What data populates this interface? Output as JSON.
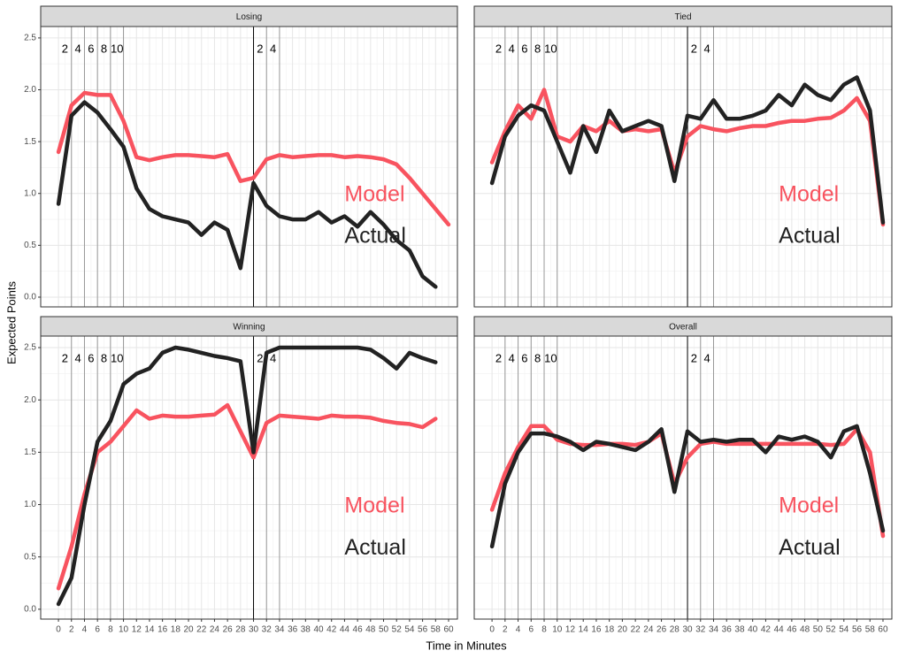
{
  "chart_data": [
    {
      "type": "line",
      "title": "Losing",
      "x": [
        0,
        2,
        4,
        6,
        8,
        10,
        12,
        14,
        16,
        18,
        20,
        22,
        24,
        26,
        28,
        30,
        32,
        34,
        36,
        38,
        40,
        42,
        44,
        46,
        48,
        50,
        52,
        54,
        56,
        58,
        60
      ],
      "series": [
        {
          "name": "Model",
          "color": "#f8535f",
          "values": [
            1.4,
            1.85,
            1.97,
            1.95,
            1.95,
            1.7,
            1.35,
            1.32,
            1.35,
            1.37,
            1.37,
            1.36,
            1.35,
            1.38,
            1.12,
            1.15,
            1.33,
            1.37,
            1.35,
            1.36,
            1.37,
            1.37,
            1.35,
            1.36,
            1.35,
            1.33,
            1.28,
            1.15,
            1.0,
            0.85,
            0.7
          ]
        },
        {
          "name": "Actual",
          "color": "#222222",
          "values": [
            0.9,
            1.75,
            1.88,
            1.78,
            1.62,
            1.45,
            1.05,
            0.85,
            0.78,
            0.75,
            0.72,
            0.6,
            0.72,
            0.65,
            0.28,
            1.1,
            0.88,
            0.78,
            0.75,
            0.75,
            0.82,
            0.72,
            0.78,
            0.68,
            0.82,
            0.7,
            0.55,
            0.45,
            0.2,
            0.1,
            null
          ]
        }
      ]
    },
    {
      "type": "line",
      "title": "Tied",
      "x": [
        0,
        2,
        4,
        6,
        8,
        10,
        12,
        14,
        16,
        18,
        20,
        22,
        24,
        26,
        28,
        30,
        32,
        34,
        36,
        38,
        40,
        42,
        44,
        46,
        48,
        50,
        52,
        54,
        56,
        58,
        60
      ],
      "series": [
        {
          "name": "Model",
          "color": "#f8535f",
          "values": [
            1.3,
            1.6,
            1.85,
            1.72,
            2.0,
            1.55,
            1.5,
            1.65,
            1.6,
            1.7,
            1.6,
            1.62,
            1.6,
            1.62,
            1.2,
            1.55,
            1.65,
            1.62,
            1.6,
            1.63,
            1.65,
            1.65,
            1.68,
            1.7,
            1.7,
            1.72,
            1.73,
            1.8,
            1.92,
            1.7,
            0.7
          ]
        },
        {
          "name": "Actual",
          "color": "#222222",
          "values": [
            1.1,
            1.55,
            1.75,
            1.85,
            1.8,
            1.5,
            1.2,
            1.65,
            1.4,
            1.8,
            1.6,
            1.65,
            1.7,
            1.65,
            1.12,
            1.75,
            1.72,
            1.9,
            1.72,
            1.72,
            1.75,
            1.8,
            1.95,
            1.85,
            2.05,
            1.95,
            1.9,
            2.05,
            2.12,
            1.8,
            0.72
          ]
        }
      ]
    },
    {
      "type": "line",
      "title": "Winning",
      "x": [
        0,
        2,
        4,
        6,
        8,
        10,
        12,
        14,
        16,
        18,
        20,
        22,
        24,
        26,
        28,
        30,
        32,
        34,
        36,
        38,
        40,
        42,
        44,
        46,
        48,
        50,
        52,
        54,
        56,
        58,
        60
      ],
      "series": [
        {
          "name": "Model",
          "color": "#f8535f",
          "values": [
            0.2,
            0.6,
            1.1,
            1.5,
            1.6,
            1.75,
            1.9,
            1.82,
            1.85,
            1.84,
            1.84,
            1.85,
            1.86,
            1.95,
            1.7,
            1.45,
            1.78,
            1.85,
            1.84,
            1.83,
            1.82,
            1.85,
            1.84,
            1.84,
            1.83,
            1.8,
            1.78,
            1.77,
            1.74,
            1.82,
            null
          ]
        },
        {
          "name": "Actual",
          "color": "#222222",
          "values": [
            0.05,
            0.3,
            1.0,
            1.6,
            1.8,
            2.15,
            2.25,
            2.3,
            2.45,
            2.5,
            2.48,
            2.45,
            2.42,
            2.4,
            2.37,
            1.5,
            2.45,
            2.5,
            2.5,
            2.5,
            2.5,
            2.5,
            2.5,
            2.5,
            2.48,
            2.4,
            2.3,
            2.45,
            2.4,
            2.36,
            null
          ]
        }
      ]
    },
    {
      "type": "line",
      "title": "Overall",
      "x": [
        0,
        2,
        4,
        6,
        8,
        10,
        12,
        14,
        16,
        18,
        20,
        22,
        24,
        26,
        28,
        30,
        32,
        34,
        36,
        38,
        40,
        42,
        44,
        46,
        48,
        50,
        52,
        54,
        56,
        58,
        60
      ],
      "series": [
        {
          "name": "Model",
          "color": "#f8535f",
          "values": [
            0.95,
            1.3,
            1.55,
            1.75,
            1.75,
            1.62,
            1.58,
            1.57,
            1.57,
            1.58,
            1.58,
            1.57,
            1.6,
            1.68,
            1.2,
            1.45,
            1.58,
            1.6,
            1.58,
            1.58,
            1.58,
            1.58,
            1.58,
            1.58,
            1.58,
            1.58,
            1.57,
            1.58,
            1.72,
            1.5,
            0.7
          ]
        },
        {
          "name": "Actual",
          "color": "#222222",
          "values": [
            0.6,
            1.2,
            1.5,
            1.68,
            1.68,
            1.65,
            1.6,
            1.52,
            1.6,
            1.58,
            1.55,
            1.52,
            1.6,
            1.72,
            1.12,
            1.7,
            1.6,
            1.62,
            1.6,
            1.62,
            1.62,
            1.5,
            1.65,
            1.62,
            1.65,
            1.6,
            1.45,
            1.7,
            1.75,
            1.3,
            0.75
          ]
        }
      ]
    }
  ],
  "axes": {
    "x_label": "Time in Minutes",
    "y_label": "Expected Points",
    "xlim": [
      -2.73,
      61.36
    ],
    "xticks": [
      0,
      2,
      4,
      6,
      8,
      10,
      12,
      14,
      16,
      18,
      20,
      22,
      24,
      26,
      28,
      30,
      32,
      34,
      36,
      38,
      40,
      42,
      44,
      46,
      48,
      50,
      52,
      54,
      56,
      58,
      60
    ],
    "ylim": [
      -0.094,
      2.61
    ],
    "yticks": [
      {
        "value": 0,
        "label": "0.0"
      },
      0.5,
      {
        "value": 1,
        "label": "1.0"
      },
      1.5,
      {
        "value": 2,
        "label": "2.0"
      },
      2.5
    ],
    "grid": true
  },
  "reference_lines": [
    {
      "value": 2,
      "label": "2",
      "color": "#999999"
    },
    {
      "value": 4,
      "label": "4",
      "color": "#999999"
    },
    {
      "value": 6,
      "label": "6",
      "color": "#999999"
    },
    {
      "value": 8,
      "label": "8",
      "color": "#999999"
    },
    {
      "value": 10,
      "label": "10",
      "color": "#999999"
    },
    {
      "value": 30,
      "color": "#000000"
    },
    {
      "value": 32,
      "label": "2",
      "color": "#999999"
    },
    {
      "value": 34,
      "label": "4",
      "color": "#999999"
    }
  ]
}
